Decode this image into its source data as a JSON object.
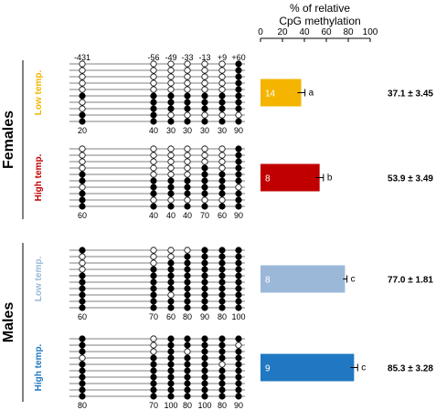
{
  "axis": {
    "title_line1": "% of relative",
    "title_line2": "CpG methylation",
    "ticks": [
      0,
      20,
      40,
      60,
      80,
      100
    ],
    "range": [
      0,
      100
    ]
  },
  "cpg_positions": [
    "-431",
    "-56",
    "-49",
    "-33",
    "-13",
    "+9",
    "+60"
  ],
  "sexes": [
    {
      "label": "Females",
      "group_indices": [
        0,
        1
      ]
    },
    {
      "label": "Males",
      "group_indices": [
        2,
        3
      ]
    }
  ],
  "groups": [
    {
      "label": "Low temp.",
      "color": "#f4b400",
      "n": "14",
      "letter": "a",
      "mean_text": "37.1 ± 3.45",
      "column_percents": [
        "20",
        "40",
        "30",
        "30",
        "30",
        "30",
        "90"
      ],
      "lollipops": [
        [
          0,
          0,
          0,
          0,
          0,
          0,
          1
        ],
        [
          0,
          0,
          0,
          0,
          0,
          0,
          1
        ],
        [
          0,
          0,
          0,
          0,
          0,
          0,
          1
        ],
        [
          0,
          0,
          0,
          0,
          0,
          0,
          1
        ],
        [
          0,
          0,
          0,
          0,
          0,
          0,
          1
        ],
        [
          1,
          1,
          1,
          1,
          1,
          1,
          1
        ],
        [
          0,
          1,
          1,
          1,
          1,
          1,
          1
        ],
        [
          0,
          1,
          1,
          1,
          1,
          1,
          1
        ],
        [
          1,
          1,
          0,
          0,
          0,
          0,
          0
        ],
        [
          1,
          1,
          1,
          1,
          1,
          1,
          1
        ]
      ]
    },
    {
      "label": "High temp.",
      "color": "#c00000",
      "n": "8",
      "letter": "b",
      "mean_text": "53.9 ± 3.49",
      "column_percents": [
        "60",
        "40",
        "40",
        "40",
        "70",
        "60",
        "90"
      ],
      "lollipops": [
        [
          0,
          0,
          0,
          0,
          0,
          0,
          1
        ],
        [
          0,
          0,
          0,
          0,
          0,
          0,
          1
        ],
        [
          0,
          0,
          0,
          0,
          0,
          0,
          1
        ],
        [
          0,
          0,
          0,
          0,
          1,
          0,
          1
        ],
        [
          1,
          0,
          0,
          0,
          1,
          1,
          1
        ],
        [
          1,
          1,
          1,
          1,
          1,
          1,
          1
        ],
        [
          0,
          1,
          1,
          1,
          1,
          1,
          0
        ],
        [
          1,
          1,
          1,
          1,
          1,
          1,
          1
        ],
        [
          1,
          0,
          0,
          0,
          0,
          0,
          1
        ],
        [
          1,
          1,
          1,
          1,
          1,
          1,
          1
        ]
      ]
    },
    {
      "label": "Low temp.",
      "color": "#9bb8d9",
      "n": "8",
      "letter": "c",
      "mean_text": "77.0 ± 1.81",
      "column_percents": [
        "60",
        "70",
        "60",
        "80",
        "90",
        "80",
        "100"
      ],
      "lollipops": [
        [
          1,
          0,
          0,
          0,
          1,
          1,
          1
        ],
        [
          0,
          0,
          0,
          1,
          1,
          1,
          1
        ],
        [
          0,
          0,
          1,
          1,
          1,
          1,
          1
        ],
        [
          0,
          1,
          1,
          1,
          1,
          1,
          1
        ],
        [
          1,
          1,
          1,
          1,
          1,
          1,
          1
        ],
        [
          1,
          1,
          1,
          1,
          1,
          1,
          1
        ],
        [
          1,
          1,
          1,
          1,
          1,
          1,
          1
        ],
        [
          1,
          1,
          0,
          1,
          1,
          1,
          1
        ],
        [
          1,
          1,
          1,
          1,
          1,
          1,
          1
        ],
        [
          1,
          1,
          1,
          1,
          1,
          1,
          1
        ]
      ]
    },
    {
      "label": "High temp.",
      "color": "#1f78c1",
      "n": "9",
      "letter": "c",
      "mean_text": "85.3 ± 3.28",
      "column_percents": [
        "80",
        "70",
        "100",
        "80",
        "100",
        "80",
        "90"
      ],
      "lollipops": [
        [
          1,
          0,
          1,
          1,
          1,
          1,
          1
        ],
        [
          1,
          0,
          1,
          1,
          1,
          1,
          0
        ],
        [
          1,
          0,
          1,
          0,
          1,
          1,
          1
        ],
        [
          0,
          1,
          1,
          1,
          1,
          1,
          1
        ],
        [
          1,
          1,
          1,
          1,
          1,
          0,
          1
        ],
        [
          1,
          1,
          1,
          1,
          1,
          1,
          1
        ],
        [
          1,
          1,
          1,
          1,
          1,
          1,
          1
        ],
        [
          1,
          1,
          1,
          1,
          1,
          1,
          1
        ],
        [
          1,
          1,
          1,
          1,
          1,
          1,
          1
        ],
        [
          1,
          1,
          1,
          1,
          1,
          1,
          1
        ]
      ]
    }
  ],
  "chart_data": {
    "type": "bar",
    "orientation": "horizontal",
    "title": "",
    "xlabel": "% of relative CpG methylation",
    "ylabel": "",
    "xlim": [
      0,
      100
    ],
    "categories": [
      "Females Low temp.",
      "Females High temp.",
      "Males Low temp.",
      "Males High temp."
    ],
    "values": [
      37.1,
      53.9,
      77.0,
      85.3
    ],
    "errors": [
      3.45,
      3.49,
      1.81,
      3.28
    ],
    "bar_labels": [
      "14",
      "8",
      "8",
      "9"
    ],
    "significance_letters": [
      "a",
      "b",
      "c",
      "c"
    ],
    "colors": [
      "#f4b400",
      "#c00000",
      "#9bb8d9",
      "#1f78c1"
    ]
  }
}
